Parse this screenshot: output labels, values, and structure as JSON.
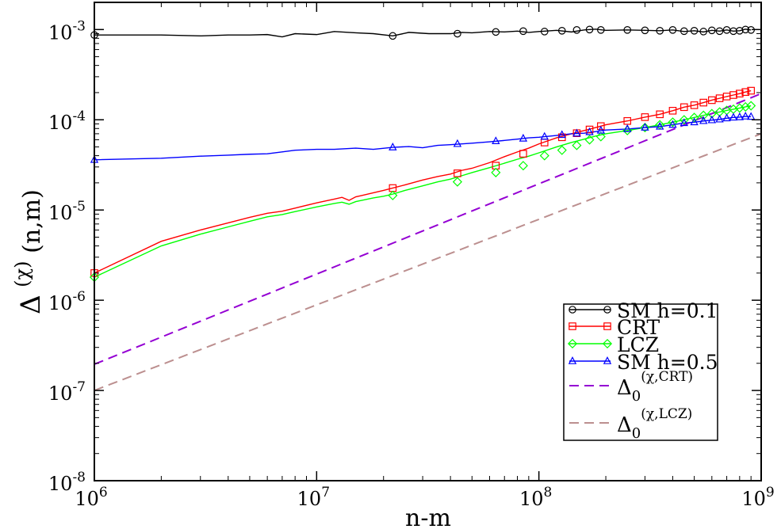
{
  "chart_data": {
    "type": "line",
    "x_scale": "log",
    "y_scale": "log",
    "xlim": [
      1000000,
      1000000000
    ],
    "ylim": [
      1e-08,
      0.002
    ],
    "xlabel": "n-m",
    "ylabel": {
      "base": "Δ",
      "sup": "(χ)",
      "rest": " (n,m)"
    },
    "x_ticks": [
      {
        "value": 1000000,
        "base": "10",
        "exp": "6"
      },
      {
        "value": 10000000,
        "base": "10",
        "exp": "7"
      },
      {
        "value": 100000000,
        "base": "10",
        "exp": "8"
      },
      {
        "value": 1000000000,
        "base": "10",
        "exp": "9"
      }
    ],
    "y_ticks": [
      {
        "value": 1e-08,
        "base": "10",
        "exp": "-8"
      },
      {
        "value": 1e-07,
        "base": "10",
        "exp": "-7"
      },
      {
        "value": 1e-06,
        "base": "10",
        "exp": "-6"
      },
      {
        "value": 1e-05,
        "base": "10",
        "exp": "-5"
      },
      {
        "value": 0.0001,
        "base": "10",
        "exp": "-4"
      },
      {
        "value": 0.001,
        "base": "10",
        "exp": "-3"
      }
    ],
    "series": [
      {
        "name": "SM h=0.1",
        "legend": {
          "text": "SM h=0.1"
        },
        "color": "#000000",
        "dash": "none",
        "marker": "circle",
        "x": [
          1000000,
          2000000,
          3000000,
          4000000,
          5000000,
          6000000,
          7000000,
          8000000,
          10000000,
          12000000,
          15000000,
          18000000,
          22000000,
          26000000,
          32000000,
          40000000,
          45000000,
          50000000,
          60000000,
          70000000,
          80000000,
          90000000,
          100000000,
          120000000,
          140000000,
          160000000,
          180000000,
          200000000,
          250000000,
          300000000,
          350000000,
          400000000,
          450000000,
          500000000,
          550000000,
          600000000,
          650000000,
          700000000,
          750000000,
          800000000,
          850000000,
          900000000
        ],
        "values": [
          0.00087,
          0.00087,
          0.00085,
          0.00087,
          0.00087,
          0.00088,
          0.00083,
          0.0009,
          0.00088,
          0.00095,
          0.00092,
          0.0009,
          0.00085,
          0.00093,
          0.0009,
          0.0009,
          0.00093,
          0.00092,
          0.00095,
          0.00094,
          0.00096,
          0.00093,
          0.00095,
          0.00098,
          0.00094,
          0.00099,
          0.00101,
          0.00098,
          0.00099,
          0.00098,
          0.00097,
          0.00099,
          0.00095,
          0.00097,
          0.00094,
          0.00098,
          0.00096,
          0.00099,
          0.00096,
          0.00097,
          0.00101,
          0.00099
        ],
        "marker_x": [
          1000000,
          22000000,
          43000000,
          64000000,
          85000000,
          106000000,
          127000000,
          148000000,
          169000000,
          190000000,
          250000000,
          300000000,
          350000000,
          400000000,
          450000000,
          500000000,
          550000000,
          600000000,
          650000000,
          700000000,
          750000000,
          800000000,
          850000000,
          900000000
        ],
        "marker_values": [
          0.00087,
          0.00085,
          0.0009,
          0.00094,
          0.00096,
          0.00095,
          0.00097,
          0.00099,
          0.001,
          0.00099,
          0.00099,
          0.00098,
          0.00097,
          0.00099,
          0.00096,
          0.00097,
          0.00095,
          0.00098,
          0.00096,
          0.00099,
          0.00096,
          0.00097,
          0.001,
          0.00099
        ]
      },
      {
        "name": "CRT",
        "legend": {
          "text": "CRT"
        },
        "color": "#ff0000",
        "dash": "none",
        "marker": "square",
        "x": [
          1000000,
          2000000,
          3000000,
          4000000,
          5000000,
          6000000,
          7000000,
          8000000,
          10000000,
          12000000,
          13000000,
          14000000,
          15000000,
          16000000,
          18000000,
          20000000,
          22000000,
          25000000,
          30000000,
          35000000,
          40000000,
          45000000,
          50000000,
          60000000,
          70000000,
          80000000,
          90000000,
          100000000,
          120000000,
          140000000,
          160000000,
          180000000,
          200000000,
          250000000,
          300000000,
          350000000,
          400000000,
          450000000,
          500000000,
          550000000,
          600000000,
          650000000,
          700000000,
          750000000,
          800000000,
          850000000,
          900000000
        ],
        "values": [
          2e-06,
          4.5e-06,
          6e-06,
          7.2e-06,
          8.3e-06,
          9.2e-06,
          9.7e-06,
          1.05e-05,
          1.2e-05,
          1.32e-05,
          1.38e-05,
          1.28e-05,
          1.4e-05,
          1.45e-05,
          1.55e-05,
          1.65e-05,
          1.75e-05,
          1.9e-05,
          2.15e-05,
          2.35e-05,
          2.5e-05,
          2.75e-05,
          2.9e-05,
          3.35e-05,
          3.9e-05,
          4.4e-05,
          4.85e-05,
          5.4e-05,
          6.3e-05,
          7e-05,
          7.6e-05,
          8.2e-05,
          8.8e-05,
          9.7e-05,
          0.000107,
          0.000115,
          0.000126,
          0.000138,
          0.000145,
          0.000155,
          0.000165,
          0.000173,
          0.000181,
          0.000188,
          0.000195,
          0.000203,
          0.00021
        ],
        "marker_x": [
          1000000,
          22000000,
          43000000,
          64000000,
          85000000,
          106000000,
          127000000,
          148000000,
          169000000,
          190000000,
          250000000,
          300000000,
          350000000,
          400000000,
          450000000,
          500000000,
          550000000,
          600000000,
          650000000,
          700000000,
          750000000,
          800000000,
          850000000,
          900000000
        ],
        "marker_values": [
          2e-06,
          1.75e-05,
          2.55e-05,
          3.1e-05,
          4.2e-05,
          5.6e-05,
          6.4e-05,
          7.1e-05,
          7.8e-05,
          8.5e-05,
          9.7e-05,
          0.000107,
          0.000115,
          0.000126,
          0.000138,
          0.000145,
          0.000155,
          0.000165,
          0.000173,
          0.000181,
          0.000188,
          0.000195,
          0.000203,
          0.00021
        ]
      },
      {
        "name": "LCZ",
        "legend": {
          "text": "LCZ"
        },
        "color": "#00ff00",
        "dash": "none",
        "marker": "diamond",
        "x": [
          1000000,
          2000000,
          3000000,
          4000000,
          5000000,
          6000000,
          7000000,
          8000000,
          10000000,
          12000000,
          13000000,
          14000000,
          15000000,
          16000000,
          18000000,
          20000000,
          22000000,
          25000000,
          30000000,
          35000000,
          40000000,
          45000000,
          50000000,
          60000000,
          70000000,
          80000000,
          90000000,
          100000000,
          120000000,
          140000000,
          160000000,
          180000000,
          200000000,
          250000000,
          300000000,
          350000000,
          400000000,
          450000000,
          500000000,
          550000000,
          600000000,
          650000000,
          700000000,
          750000000,
          800000000,
          850000000,
          900000000
        ],
        "values": [
          1.8e-06,
          4e-06,
          5.4e-06,
          6.5e-06,
          7.5e-06,
          8.4e-06,
          8.9e-06,
          9.6e-06,
          1.08e-05,
          1.18e-05,
          1.22e-05,
          1.16e-05,
          1.24e-05,
          1.28e-05,
          1.36e-05,
          1.42e-05,
          1.5e-05,
          1.65e-05,
          1.85e-05,
          2.05e-05,
          2.2e-05,
          2.4e-05,
          2.6e-05,
          2.95e-05,
          3.3e-05,
          3.65e-05,
          3.95e-05,
          4.3e-05,
          5e-05,
          5.6e-05,
          6.1e-05,
          6.6e-05,
          7e-05,
          7.6e-05,
          8.2e-05,
          8.8e-05,
          9.4e-05,
          0.0001,
          0.000106,
          0.000112,
          0.000117,
          0.000122,
          0.000127,
          0.000131,
          0.000135,
          0.000139,
          0.000143
        ],
        "marker_x": [
          1000000,
          22000000,
          43000000,
          64000000,
          85000000,
          106000000,
          127000000,
          148000000,
          169000000,
          190000000,
          250000000,
          300000000,
          350000000,
          400000000,
          450000000,
          500000000,
          550000000,
          600000000,
          650000000,
          700000000,
          750000000,
          800000000,
          850000000,
          900000000
        ],
        "marker_values": [
          1.8e-06,
          1.45e-05,
          2.05e-05,
          2.6e-05,
          3.1e-05,
          4e-05,
          4.6e-05,
          5.2e-05,
          6e-05,
          6.5e-05,
          7.6e-05,
          8.2e-05,
          8.8e-05,
          9.4e-05,
          0.0001,
          0.000106,
          0.000112,
          0.000117,
          0.000122,
          0.000127,
          0.000131,
          0.000135,
          0.000139,
          0.000143
        ]
      },
      {
        "name": "SM h=0.5",
        "legend": {
          "text": "SM h=0.5"
        },
        "color": "#0000ff",
        "dash": "none",
        "marker": "triangle",
        "x": [
          1000000,
          2000000,
          3000000,
          4000000,
          5000000,
          6000000,
          7000000,
          8000000,
          10000000,
          12000000,
          15000000,
          18000000,
          22000000,
          26000000,
          30000000,
          35000000,
          40000000,
          50000000,
          60000000,
          70000000,
          80000000,
          90000000,
          100000000,
          120000000,
          140000000,
          160000000,
          180000000,
          200000000,
          250000000,
          300000000,
          350000000,
          400000000,
          450000000,
          500000000,
          550000000,
          600000000,
          650000000,
          700000000,
          750000000,
          800000000,
          850000000,
          900000000
        ],
        "values": [
          3.6e-05,
          3.75e-05,
          3.95e-05,
          4.05e-05,
          4.15e-05,
          4.2e-05,
          4.4e-05,
          4.6e-05,
          4.7e-05,
          4.7e-05,
          4.85e-05,
          4.7e-05,
          4.95e-05,
          5.05e-05,
          4.9e-05,
          5.2e-05,
          5.3e-05,
          5.5e-05,
          5.7e-05,
          5.9e-05,
          6.1e-05,
          6.3e-05,
          6.4e-05,
          6.7e-05,
          7e-05,
          7.1e-05,
          7.4e-05,
          7.7e-05,
          7.9e-05,
          8.2e-05,
          8.4e-05,
          8.8e-05,
          9.2e-05,
          9.4e-05,
          9.7e-05,
          9.9e-05,
          0.000101,
          0.000104,
          0.000106,
          0.000107,
          0.000109,
          0.000108
        ],
        "marker_x": [
          1000000,
          22000000,
          43000000,
          64000000,
          85000000,
          106000000,
          127000000,
          148000000,
          169000000,
          190000000,
          250000000,
          300000000,
          350000000,
          400000000,
          450000000,
          500000000,
          550000000,
          600000000,
          650000000,
          700000000,
          750000000,
          800000000,
          850000000,
          900000000
        ],
        "marker_values": [
          3.6e-05,
          4.95e-05,
          5.4e-05,
          5.8e-05,
          6.2e-05,
          6.5e-05,
          6.8e-05,
          7.05e-05,
          7.3e-05,
          7.6e-05,
          7.9e-05,
          8.2e-05,
          8.4e-05,
          8.8e-05,
          9.2e-05,
          9.4e-05,
          9.7e-05,
          9.9e-05,
          0.000101,
          0.000104,
          0.000106,
          0.000107,
          0.000109,
          0.000108
        ]
      },
      {
        "name": "Δ0(χ,CRT)",
        "legend": {
          "base": "Δ",
          "sub": "0",
          "sup": "(χ,CRT)"
        },
        "color": "#9400d3",
        "dash": "dashed",
        "marker": "none",
        "x": [
          1000000,
          1000000000
        ],
        "values": [
          1.95e-07,
          0.000195
        ]
      },
      {
        "name": "Δ0(χ,LCZ)",
        "legend": {
          "base": "Δ",
          "sub": "0",
          "sup": "(χ,LCZ)"
        },
        "color": "#bc8f8f",
        "dash": "dashed",
        "marker": "none",
        "x": [
          1000000,
          1000000000
        ],
        "values": [
          1e-07,
          7e-05
        ]
      }
    ],
    "legend_position": "bottom-right"
  }
}
